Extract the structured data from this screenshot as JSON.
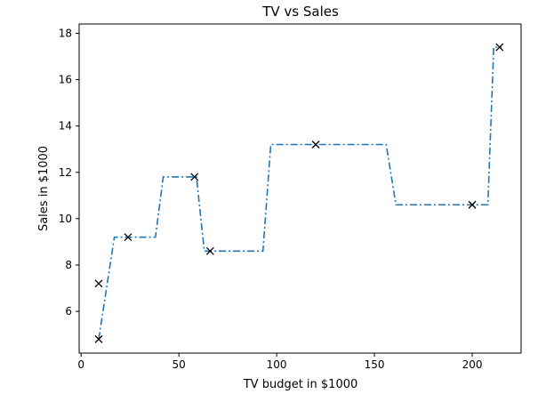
{
  "chart_data": {
    "type": "line",
    "title": "TV vs Sales",
    "xlabel": "TV budget in $1000",
    "ylabel": "Sales in $1000",
    "xlim": [
      -1,
      225
    ],
    "ylim": [
      4.2,
      18.4
    ],
    "xticks": [
      0,
      50,
      100,
      150,
      200
    ],
    "yticks": [
      6,
      8,
      10,
      12,
      14,
      16,
      18
    ],
    "grid": false,
    "series": [
      {
        "style": "dash-dot line",
        "color": "#1f77b4",
        "x": [
          9,
          17,
          38,
          42,
          59,
          63,
          93,
          97,
          156,
          161,
          208,
          211,
          215
        ],
        "y": [
          4.8,
          9.2,
          9.2,
          11.8,
          11.8,
          8.6,
          8.6,
          13.2,
          13.2,
          10.6,
          10.6,
          17.4,
          17.4
        ]
      },
      {
        "style": "x markers",
        "color": "#000000",
        "x": [
          9,
          9,
          24,
          58,
          66,
          120,
          200,
          214
        ],
        "y": [
          7.2,
          4.8,
          9.2,
          11.8,
          8.6,
          13.2,
          10.6,
          17.4
        ]
      }
    ]
  }
}
